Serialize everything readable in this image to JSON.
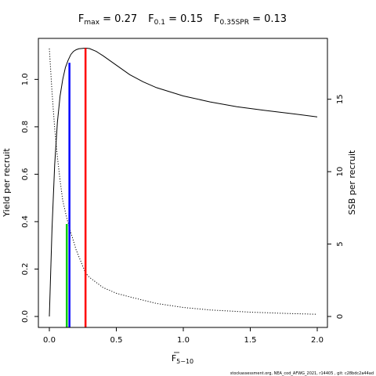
{
  "chart_data": {
    "type": "line",
    "title": {
      "fmax": {
        "main": "F",
        "sub": "max",
        "rest": " = 0.27"
      },
      "f01": {
        "main": "F",
        "sub": "0.1",
        "rest": " = 0.15"
      },
      "f035": {
        "main": "F",
        "sub": "0.35SPR",
        "rest": " = 0.13"
      }
    },
    "xlabel": {
      "main": "F",
      "sub": "5−10"
    },
    "ylabel_left": "Yield per recruit",
    "ylabel_right": "SSB per recruit",
    "xlim": [
      0,
      2.0
    ],
    "ylim_left": [
      0,
      1.13
    ],
    "ylim_right": [
      0,
      18.5
    ],
    "x_ticks": [
      {
        "v": 0,
        "label": "0.0"
      },
      {
        "v": 0.5,
        "label": "0.5"
      },
      {
        "v": 1.0,
        "label": "1.0"
      },
      {
        "v": 1.5,
        "label": "1.5"
      },
      {
        "v": 2.0,
        "label": "2.0"
      }
    ],
    "y_left_ticks": [
      {
        "v": 0,
        "label": "0.0"
      },
      {
        "v": 0.2,
        "label": "0.2"
      },
      {
        "v": 0.4,
        "label": "0.4"
      },
      {
        "v": 0.6,
        "label": "0.6"
      },
      {
        "v": 0.8,
        "label": "0.8"
      },
      {
        "v": 1.0,
        "label": "1.0"
      }
    ],
    "y_right_ticks": [
      {
        "v": 0,
        "label": "0"
      },
      {
        "v": 5,
        "label": "5"
      },
      {
        "v": 10,
        "label": "10"
      },
      {
        "v": 15,
        "label": "15"
      }
    ],
    "series": [
      {
        "axis": "left",
        "style": "solid",
        "color": "#000000",
        "x": [
          0,
          0.02,
          0.04,
          0.06,
          0.08,
          0.1,
          0.12,
          0.14,
          0.16,
          0.18,
          0.2,
          0.22,
          0.25,
          0.27,
          0.3,
          0.35,
          0.4,
          0.5,
          0.6,
          0.7,
          0.8,
          1.0,
          1.2,
          1.4,
          1.6,
          1.8,
          2.0
        ],
        "values": [
          0.0,
          0.37,
          0.64,
          0.82,
          0.93,
          1.0,
          1.05,
          1.08,
          1.105,
          1.118,
          1.125,
          1.129,
          1.131,
          1.132,
          1.13,
          1.118,
          1.1,
          1.06,
          1.02,
          0.99,
          0.965,
          0.93,
          0.905,
          0.885,
          0.87,
          0.856,
          0.842
        ]
      },
      {
        "axis": "right",
        "style": "dotted",
        "color": "#000000",
        "x": [
          0,
          0.02,
          0.04,
          0.06,
          0.08,
          0.1,
          0.13,
          0.15,
          0.2,
          0.27,
          0.3,
          0.4,
          0.5,
          0.6,
          0.8,
          1.0,
          1.2,
          1.5,
          1.8,
          2.0
        ],
        "values": [
          18.5,
          15.5,
          13.0,
          11.0,
          9.4,
          8.0,
          6.8,
          6.1,
          4.6,
          3.0,
          2.7,
          2.0,
          1.6,
          1.35,
          0.9,
          0.62,
          0.45,
          0.3,
          0.2,
          0.15
        ]
      }
    ],
    "reference_lines": [
      {
        "name": "Fmax",
        "x": 0.27,
        "y_left": 1.132,
        "color": "#ff0000"
      },
      {
        "name": "F0.1",
        "x": 0.15,
        "y_left": 1.07,
        "color": "#0000ff"
      },
      {
        "name": "F0.35SPR",
        "x": 0.13,
        "y_left": 0.39,
        "color": "#00cc00"
      }
    ],
    "footnote": "stockassessment.org, NEA_cod_AFWG_2021, r14405 , git: c28bdc2a44ad"
  }
}
